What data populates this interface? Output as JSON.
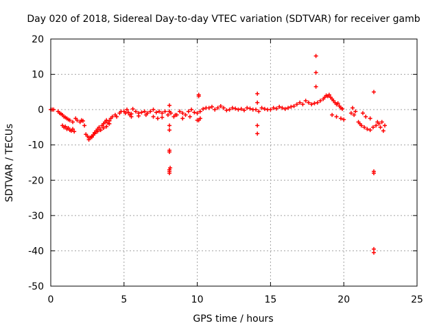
{
  "chart_data": {
    "type": "scatter",
    "title": "Day 020 of 2018, Sidereal Day-to-day VTEC variation (SDTVAR) for receiver gamb",
    "xlabel": "GPS time / hours",
    "ylabel": "SDTVAR / TECUs",
    "xlim": [
      0,
      25
    ],
    "ylim": [
      -50,
      20
    ],
    "x_ticks": [
      0,
      5,
      10,
      15,
      20,
      25
    ],
    "y_ticks": [
      -50,
      -40,
      -30,
      -20,
      -10,
      0,
      10,
      20
    ],
    "x_tick_labels": [
      "0",
      "5",
      "10",
      "15",
      "20",
      "25"
    ],
    "y_tick_labels": [
      "-50",
      "-40",
      "-30",
      "-20",
      "-10",
      "0",
      "10",
      "20"
    ],
    "grid": true,
    "marker": "+",
    "colors": {
      "series": "#ff0000",
      "axes": "#000000",
      "grid": "#a0a0a0"
    },
    "series": [
      {
        "name": "SDTVAR",
        "x": [
          0.0,
          0.1,
          0.2,
          0.5,
          0.6,
          0.7,
          0.8,
          0.9,
          1.0,
          1.1,
          1.2,
          1.3,
          1.5,
          1.7,
          1.8,
          2.0,
          2.1,
          2.2,
          0.8,
          0.9,
          1.0,
          1.1,
          1.2,
          1.3,
          1.4,
          1.5,
          1.6,
          2.3,
          2.4,
          2.5,
          2.6,
          2.7,
          2.8,
          2.9,
          3.0,
          3.1,
          3.2,
          3.3,
          3.4,
          3.5,
          3.6,
          3.7,
          3.8,
          3.9,
          4.0,
          4.1,
          4.2,
          4.4,
          4.5,
          4.7,
          4.8,
          2.6,
          2.8,
          3.0,
          3.2,
          3.4,
          3.6,
          3.8,
          4.0,
          5.0,
          5.1,
          5.2,
          5.3,
          5.4,
          5.5,
          5.6,
          5.8,
          6.0,
          6.2,
          6.4,
          6.6,
          6.8,
          7.0,
          7.2,
          7.4,
          7.6,
          7.8,
          5.5,
          6.0,
          6.5,
          7.0,
          7.3,
          7.6,
          8.0,
          8.2,
          8.4,
          8.6,
          8.8,
          9.0,
          9.2,
          9.4,
          9.6,
          9.8,
          10.0,
          10.2,
          10.4,
          10.6,
          8.5,
          9.0,
          9.5,
          10.0,
          10.2,
          10.8,
          11.0,
          11.2,
          11.4,
          11.6,
          11.8,
          12.0,
          12.2,
          12.4,
          12.6,
          12.8,
          13.0,
          13.2,
          13.4,
          13.6,
          13.8,
          14.0,
          14.2,
          14.4,
          14.6,
          14.8,
          15.0,
          15.2,
          15.4,
          15.6,
          15.8,
          16.0,
          16.2,
          16.4,
          16.6,
          16.8,
          17.0,
          17.2,
          17.4,
          17.6,
          17.8,
          18.0,
          18.2,
          18.4,
          18.6,
          18.7,
          18.8,
          18.9,
          19.0,
          19.1,
          19.2,
          19.3,
          19.4,
          19.5,
          19.6,
          19.7,
          19.8,
          19.9,
          19.2,
          19.5,
          19.8,
          20.0,
          20.5,
          20.6,
          20.8,
          20.7,
          21.0,
          21.1,
          21.2,
          21.4,
          21.6,
          21.8,
          22.0,
          22.2,
          22.4,
          22.6,
          22.8,
          21.3,
          21.5,
          21.8,
          22.3,
          22.5,
          22.7,
          8.1,
          8.1,
          8.1,
          8.1,
          8.1,
          8.1,
          8.15,
          8.1,
          8.1,
          8.1,
          10.1,
          10.1,
          10.1,
          14.1,
          14.1,
          14.1,
          14.1,
          18.1,
          18.1,
          18.1,
          22.05,
          22.05,
          22.05,
          22.05,
          22.05
        ],
        "y": [
          0.0,
          0.0,
          0.0,
          -0.5,
          -1.0,
          -1.2,
          -1.5,
          -2.0,
          -2.2,
          -2.5,
          -2.8,
          -3.0,
          -3.5,
          -2.5,
          -3.0,
          -3.5,
          -3.0,
          -3.2,
          -4.5,
          -5.0,
          -4.8,
          -5.5,
          -5.2,
          -5.8,
          -6.0,
          -5.5,
          -6.2,
          -4.5,
          -7.0,
          -7.5,
          -8.5,
          -8.0,
          -7.8,
          -7.2,
          -6.5,
          -6.0,
          -5.5,
          -5.0,
          -5.8,
          -4.5,
          -4.0,
          -3.5,
          -3.0,
          -3.8,
          -3.2,
          -2.5,
          -2.0,
          -1.5,
          -2.0,
          -1.0,
          -0.5,
          -8.0,
          -7.5,
          -6.8,
          -6.2,
          -5.8,
          -5.2,
          -4.8,
          -4.0,
          -0.5,
          -1.0,
          0.0,
          -0.8,
          -1.5,
          -1.2,
          0.2,
          -0.5,
          -1.0,
          -0.8,
          -0.5,
          -1.0,
          -0.5,
          0.0,
          -0.8,
          -0.5,
          -1.0,
          -0.5,
          -2.0,
          -1.8,
          -1.5,
          -2.0,
          -2.5,
          -2.2,
          -1.5,
          -1.0,
          -2.0,
          -1.5,
          -0.5,
          -1.0,
          -1.5,
          -0.5,
          0.0,
          -0.8,
          -1.0,
          -0.5,
          0.2,
          0.5,
          -1.5,
          -2.5,
          -2.0,
          -3.0,
          -2.5,
          0.5,
          0.8,
          0.0,
          0.5,
          1.0,
          0.5,
          -0.2,
          0.0,
          0.5,
          0.3,
          0.0,
          0.2,
          -0.2,
          0.5,
          0.3,
          0.0,
          0.0,
          -0.5,
          0.5,
          0.2,
          0.0,
          0.0,
          0.5,
          0.3,
          0.8,
          0.5,
          0.2,
          0.5,
          0.8,
          1.0,
          1.5,
          2.0,
          1.5,
          2.5,
          2.0,
          1.5,
          1.8,
          2.0,
          2.5,
          3.0,
          3.5,
          4.0,
          3.8,
          4.2,
          3.5,
          3.0,
          2.5,
          2.0,
          1.5,
          1.8,
          1.0,
          0.5,
          0.2,
          -1.5,
          -2.0,
          -2.5,
          -2.8,
          -1.0,
          0.5,
          -0.5,
          -1.5,
          -3.5,
          -4.0,
          -4.5,
          -5.0,
          -5.5,
          -5.8,
          -5.0,
          -4.5,
          -4.0,
          -3.5,
          -4.5,
          -1.0,
          -2.0,
          -2.5,
          -3.5,
          -5.0,
          -6.0,
          1.2,
          -0.5,
          -4.5,
          -5.8,
          -11.5,
          -12.0,
          -16.5,
          -17.0,
          -17.5,
          -18.0,
          4.2,
          3.8,
          -3.0,
          4.5,
          2.0,
          -4.5,
          -6.8,
          15.2,
          10.5,
          6.5,
          5.0,
          -17.5,
          -18.0,
          -39.5,
          -40.5
        ]
      }
    ]
  }
}
